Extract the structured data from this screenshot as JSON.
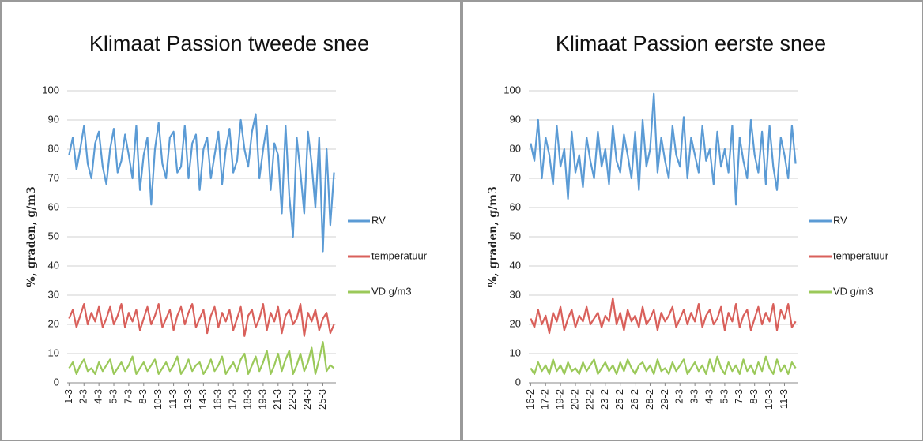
{
  "chart_data": [
    {
      "type": "line",
      "title": "Klimaat Passion tweede snee",
      "y_label": "%, graden, g/m3",
      "categories": [
        "1-3",
        null,
        null,
        null,
        "2-3",
        null,
        null,
        null,
        "4-3",
        null,
        null,
        null,
        "5-3",
        null,
        null,
        null,
        "7-3",
        null,
        null,
        null,
        "8-3",
        null,
        null,
        null,
        "10-3",
        null,
        null,
        null,
        "11-3",
        null,
        null,
        null,
        "13-3",
        null,
        null,
        null,
        "14-3",
        null,
        null,
        null,
        "16-3",
        null,
        null,
        null,
        "17-3",
        null,
        null,
        null,
        "18-3",
        null,
        null,
        null,
        "19-3",
        null,
        null,
        null,
        "21-3",
        null,
        null,
        null,
        "22-3",
        null,
        null,
        null,
        "24-3",
        null,
        null,
        null,
        "25-3",
        null,
        null,
        null
      ],
      "series": [
        {
          "name": "RV",
          "color": "#5b9bd5",
          "values": [
            78,
            84,
            73,
            80,
            88,
            75,
            70,
            82,
            86,
            74,
            68,
            80,
            87,
            72,
            76,
            85,
            78,
            70,
            88,
            66,
            78,
            84,
            61,
            80,
            89,
            75,
            70,
            84,
            86,
            72,
            74,
            88,
            70,
            82,
            85,
            66,
            80,
            84,
            70,
            78,
            86,
            68,
            80,
            87,
            72,
            76,
            90,
            80,
            74,
            86,
            92,
            70,
            80,
            88,
            66,
            82,
            78,
            58,
            88,
            64,
            50,
            84,
            72,
            58,
            86,
            75,
            60,
            84,
            45,
            80,
            54,
            72
          ]
        },
        {
          "name": "temperatuur",
          "color": "#d9605b",
          "values": [
            22,
            25,
            19,
            23,
            27,
            20,
            24,
            21,
            26,
            19,
            22,
            26,
            20,
            23,
            27,
            19,
            24,
            21,
            25,
            18,
            22,
            26,
            20,
            23,
            27,
            19,
            22,
            25,
            18,
            23,
            26,
            20,
            24,
            27,
            19,
            22,
            25,
            17,
            23,
            26,
            19,
            24,
            21,
            25,
            18,
            22,
            26,
            16,
            23,
            25,
            19,
            22,
            27,
            18,
            24,
            21,
            26,
            17,
            23,
            25,
            20,
            22,
            27,
            16,
            24,
            21,
            25,
            18,
            22,
            24,
            17,
            20
          ]
        },
        {
          "name": "VD g/m3",
          "color": "#9bc95a",
          "values": [
            5,
            7,
            3,
            6,
            8,
            4,
            5,
            3,
            7,
            4,
            6,
            8,
            3,
            5,
            7,
            4,
            6,
            9,
            3,
            5,
            7,
            4,
            6,
            8,
            3,
            5,
            7,
            4,
            6,
            9,
            3,
            5,
            8,
            4,
            6,
            7,
            3,
            5,
            8,
            4,
            6,
            9,
            3,
            5,
            7,
            4,
            8,
            10,
            3,
            6,
            9,
            4,
            7,
            11,
            3,
            6,
            10,
            4,
            8,
            11,
            3,
            6,
            10,
            4,
            7,
            12,
            3,
            8,
            14,
            4,
            6,
            5
          ]
        }
      ],
      "ylim": [
        0,
        100
      ],
      "yticks": [
        0,
        10,
        20,
        30,
        40,
        50,
        60,
        70,
        80,
        90,
        100
      ],
      "grid": true,
      "legend": "right"
    },
    {
      "type": "line",
      "title": "Klimaat Passion eerste snee",
      "y_label": "%, graden, g/m3",
      "categories": [
        "16-2",
        null,
        null,
        null,
        "17-2",
        null,
        null,
        null,
        "19-2",
        null,
        null,
        null,
        "20-2",
        null,
        null,
        null,
        "22-2",
        null,
        null,
        null,
        "23-2",
        null,
        null,
        null,
        "25-2",
        null,
        null,
        null,
        "26-2",
        null,
        null,
        null,
        "28-2",
        null,
        null,
        null,
        "29-2",
        null,
        null,
        null,
        "2-3",
        null,
        null,
        null,
        "3-3",
        null,
        null,
        null,
        "4-3",
        null,
        null,
        null,
        "5-3",
        null,
        null,
        null,
        "7-3",
        null,
        null,
        null,
        "8-3",
        null,
        null,
        null,
        "10-3",
        null,
        null,
        null,
        "11-3",
        null,
        null,
        null
      ],
      "series": [
        {
          "name": "RV",
          "color": "#5b9bd5",
          "values": [
            82,
            76,
            90,
            70,
            84,
            78,
            68,
            88,
            74,
            80,
            63,
            86,
            72,
            78,
            67,
            84,
            76,
            70,
            86,
            74,
            80,
            68,
            88,
            76,
            72,
            85,
            78,
            70,
            86,
            66,
            90,
            74,
            80,
            99,
            72,
            84,
            76,
            70,
            88,
            78,
            74,
            91,
            70,
            84,
            78,
            72,
            88,
            76,
            80,
            68,
            86,
            74,
            80,
            72,
            88,
            61,
            84,
            76,
            70,
            90,
            78,
            72,
            86,
            68,
            88,
            74,
            66,
            84,
            78,
            70,
            88,
            75
          ]
        },
        {
          "name": "temperatuur",
          "color": "#d9605b",
          "values": [
            22,
            19,
            25,
            20,
            23,
            17,
            24,
            21,
            26,
            18,
            22,
            25,
            19,
            23,
            21,
            26,
            20,
            22,
            24,
            19,
            23,
            21,
            29,
            20,
            24,
            18,
            25,
            21,
            23,
            19,
            26,
            20,
            22,
            25,
            18,
            24,
            21,
            23,
            26,
            19,
            22,
            25,
            20,
            24,
            21,
            27,
            19,
            23,
            25,
            20,
            22,
            26,
            18,
            24,
            21,
            27,
            19,
            23,
            25,
            18,
            22,
            26,
            20,
            24,
            21,
            27,
            18,
            25,
            22,
            27,
            19,
            21
          ]
        },
        {
          "name": "VD g/m3",
          "color": "#9bc95a",
          "values": [
            5,
            3,
            7,
            4,
            6,
            3,
            8,
            4,
            6,
            3,
            7,
            4,
            5,
            3,
            7,
            4,
            6,
            8,
            3,
            5,
            7,
            4,
            6,
            3,
            7,
            4,
            8,
            5,
            3,
            6,
            7,
            4,
            6,
            3,
            8,
            4,
            5,
            3,
            7,
            4,
            6,
            8,
            3,
            5,
            7,
            4,
            6,
            3,
            8,
            4,
            9,
            5,
            3,
            7,
            4,
            6,
            3,
            8,
            4,
            6,
            3,
            7,
            4,
            9,
            5,
            3,
            8,
            4,
            6,
            3,
            7,
            5
          ]
        }
      ],
      "ylim": [
        0,
        100
      ],
      "yticks": [
        0,
        10,
        20,
        30,
        40,
        50,
        60,
        70,
        80,
        90,
        100
      ],
      "grid": true,
      "legend": "right"
    }
  ]
}
